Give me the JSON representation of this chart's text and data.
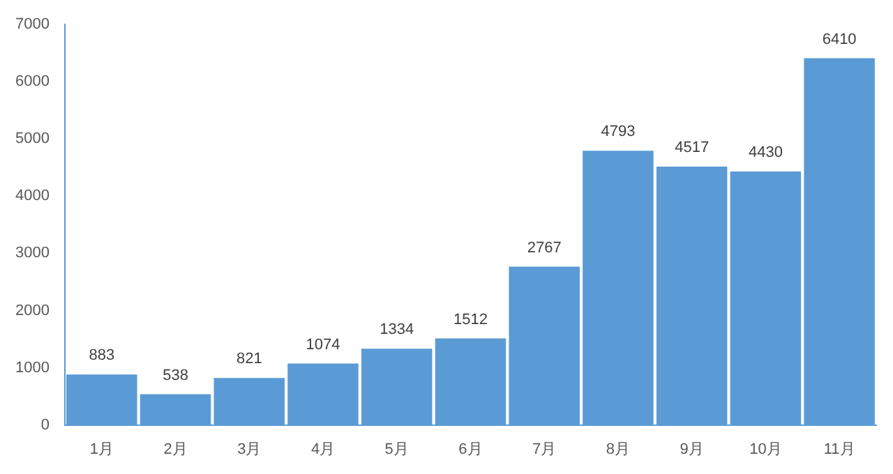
{
  "chart_data": {
    "type": "bar",
    "categories": [
      "1月",
      "2月",
      "3月",
      "4月",
      "5月",
      "6月",
      "7月",
      "8月",
      "9月",
      "10月",
      "11月"
    ],
    "values": [
      883,
      538,
      821,
      1074,
      1334,
      1512,
      2767,
      4793,
      4517,
      4430,
      6410
    ],
    "color": "#5b9bd5",
    "ylim": [
      0,
      7000
    ],
    "yticks": [
      0,
      1000,
      2000,
      3000,
      4000,
      5000,
      6000,
      7000
    ],
    "grid": false,
    "data_labels": true
  }
}
